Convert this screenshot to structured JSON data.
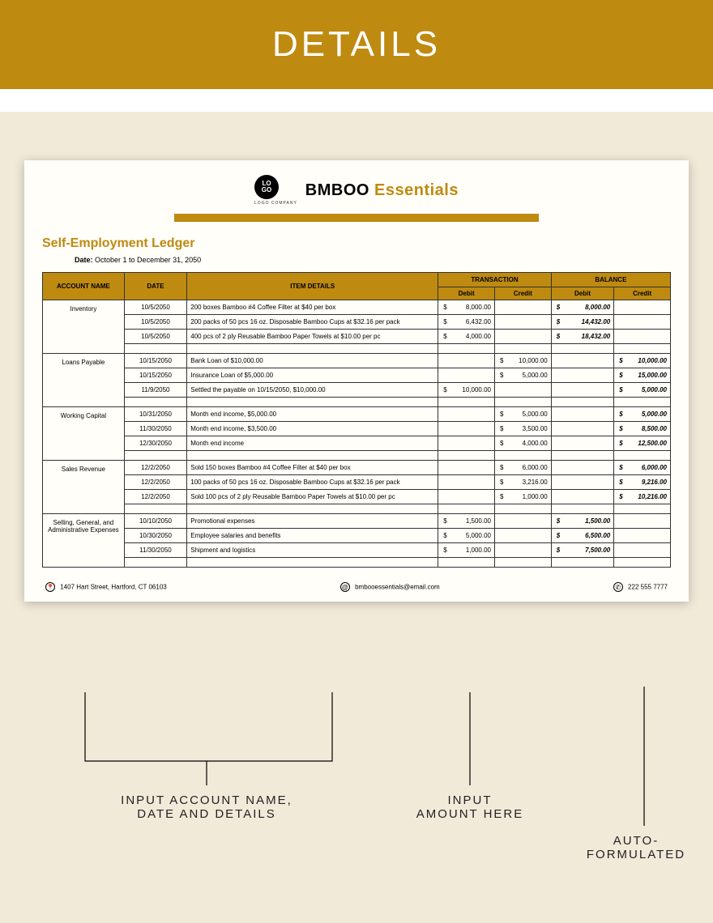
{
  "banner": {
    "title": "DETAILS"
  },
  "brand": {
    "logo_line1": "LO",
    "logo_line2": "GO",
    "logo_sub": "LOGO COMPANY",
    "name_main": "BMBOO",
    "name_accent": "Essentials"
  },
  "ledger": {
    "title": "Self-Employment Ledger",
    "date_label": "Date:",
    "date_value": "October 1 to December 31, 2050"
  },
  "columns": {
    "account": "ACCOUNT NAME",
    "date": "DATE",
    "item": "ITEM DETAILS",
    "transaction": "TRANSACTION",
    "balance": "BALANCE",
    "debit": "Debit",
    "credit": "Credit"
  },
  "col_widths": {
    "account": "13%",
    "date": "10%",
    "item": "40%",
    "t_debit": "9%",
    "t_credit": "9%",
    "b_debit": "10%",
    "b_credit": "9%"
  },
  "sections": [
    {
      "name": "Inventory",
      "rows": [
        {
          "date": "10/5/2050",
          "item": "200 boxes Bamboo #4 Coffee Filter at $40 per box",
          "t_debit": "8,000.00",
          "t_credit": "",
          "b_debit": "8,000.00",
          "b_credit": ""
        },
        {
          "date": "10/5/2050",
          "item": "200 packs of 50 pcs 16 oz. Disposable Bamboo Cups at $32.16 per pack",
          "t_debit": "6,432.00",
          "t_credit": "",
          "b_debit": "14,432.00",
          "b_credit": ""
        },
        {
          "date": "10/5/2050",
          "item": "400 pcs of 2 ply Reusable Bamboo Paper Towels at $10.00 per pc",
          "t_debit": "4,000.00",
          "t_credit": "",
          "b_debit": "18,432.00",
          "b_credit": ""
        }
      ]
    },
    {
      "name": "Loans Payable",
      "rows": [
        {
          "date": "10/15/2050",
          "item": "Bank Loan of $10,000.00",
          "t_debit": "",
          "t_credit": "10,000.00",
          "b_debit": "",
          "b_credit": "10,000.00"
        },
        {
          "date": "10/15/2050",
          "item": "Insurance Loan of $5,000.00",
          "t_debit": "",
          "t_credit": "5,000.00",
          "b_debit": "",
          "b_credit": "15,000.00"
        },
        {
          "date": "11/9/2050",
          "item": "Settled the payable on 10/15/2050, $10,000.00",
          "t_debit": "10,000.00",
          "t_credit": "",
          "b_debit": "",
          "b_credit": "5,000.00"
        }
      ]
    },
    {
      "name": "Working Capital",
      "rows": [
        {
          "date": "10/31/2050",
          "item": "Month end income, $5,000.00",
          "t_debit": "",
          "t_credit": "5,000.00",
          "b_debit": "",
          "b_credit": "5,000.00"
        },
        {
          "date": "11/30/2050",
          "item": "Month end income, $3,500.00",
          "t_debit": "",
          "t_credit": "3,500.00",
          "b_debit": "",
          "b_credit": "8,500.00"
        },
        {
          "date": "12/30/2050",
          "item": "Month end income",
          "t_debit": "",
          "t_credit": "4,000.00",
          "b_debit": "",
          "b_credit": "12,500.00"
        }
      ]
    },
    {
      "name": "Sales Revenue",
      "rows": [
        {
          "date": "12/2/2050",
          "item": "Sold 150 boxes Bamboo #4 Coffee Filter at $40 per box",
          "t_debit": "",
          "t_credit": "6,000.00",
          "b_debit": "",
          "b_credit": "6,000.00"
        },
        {
          "date": "12/2/2050",
          "item": "100 packs of 50 pcs 16 oz. Disposable Bamboo Cups at $32.16 per pack",
          "t_debit": "",
          "t_credit": "3,216.00",
          "b_debit": "",
          "b_credit": "9,216.00"
        },
        {
          "date": "12/2/2050",
          "item": "Sold 100 pcs of 2 ply Reusable Bamboo Paper Towels at $10.00 per pc",
          "t_debit": "",
          "t_credit": "1,000.00",
          "b_debit": "",
          "b_credit": "10,216.00"
        }
      ]
    },
    {
      "name": "Selling, General, and Administrative Expenses",
      "rows": [
        {
          "date": "10/10/2050",
          "item": "Promotional expenses",
          "t_debit": "1,500.00",
          "t_credit": "",
          "b_debit": "1,500.00",
          "b_credit": ""
        },
        {
          "date": "10/30/2050",
          "item": "Employee salaries and benefits",
          "t_debit": "5,000.00",
          "t_credit": "",
          "b_debit": "6,500.00",
          "b_credit": ""
        },
        {
          "date": "11/30/2050",
          "item": "Shipment and logistics",
          "t_debit": "1,000.00",
          "t_credit": "",
          "b_debit": "7,500.00",
          "b_credit": ""
        }
      ]
    }
  ],
  "footer": {
    "address": "1407 Hart Street, Hartford, CT 06103",
    "email": "bmbooessentials@email.com",
    "phone": "222 555 7777"
  },
  "callouts": {
    "left": "INPUT ACCOUNT NAME,\nDATE AND DETAILS",
    "mid": "INPUT\nAMOUNT HERE",
    "right": "AUTO-\nFORMULATED"
  },
  "colors": {
    "gold": "#be8a10",
    "bg": "#f2ead9",
    "sheet": "#fffef9"
  }
}
